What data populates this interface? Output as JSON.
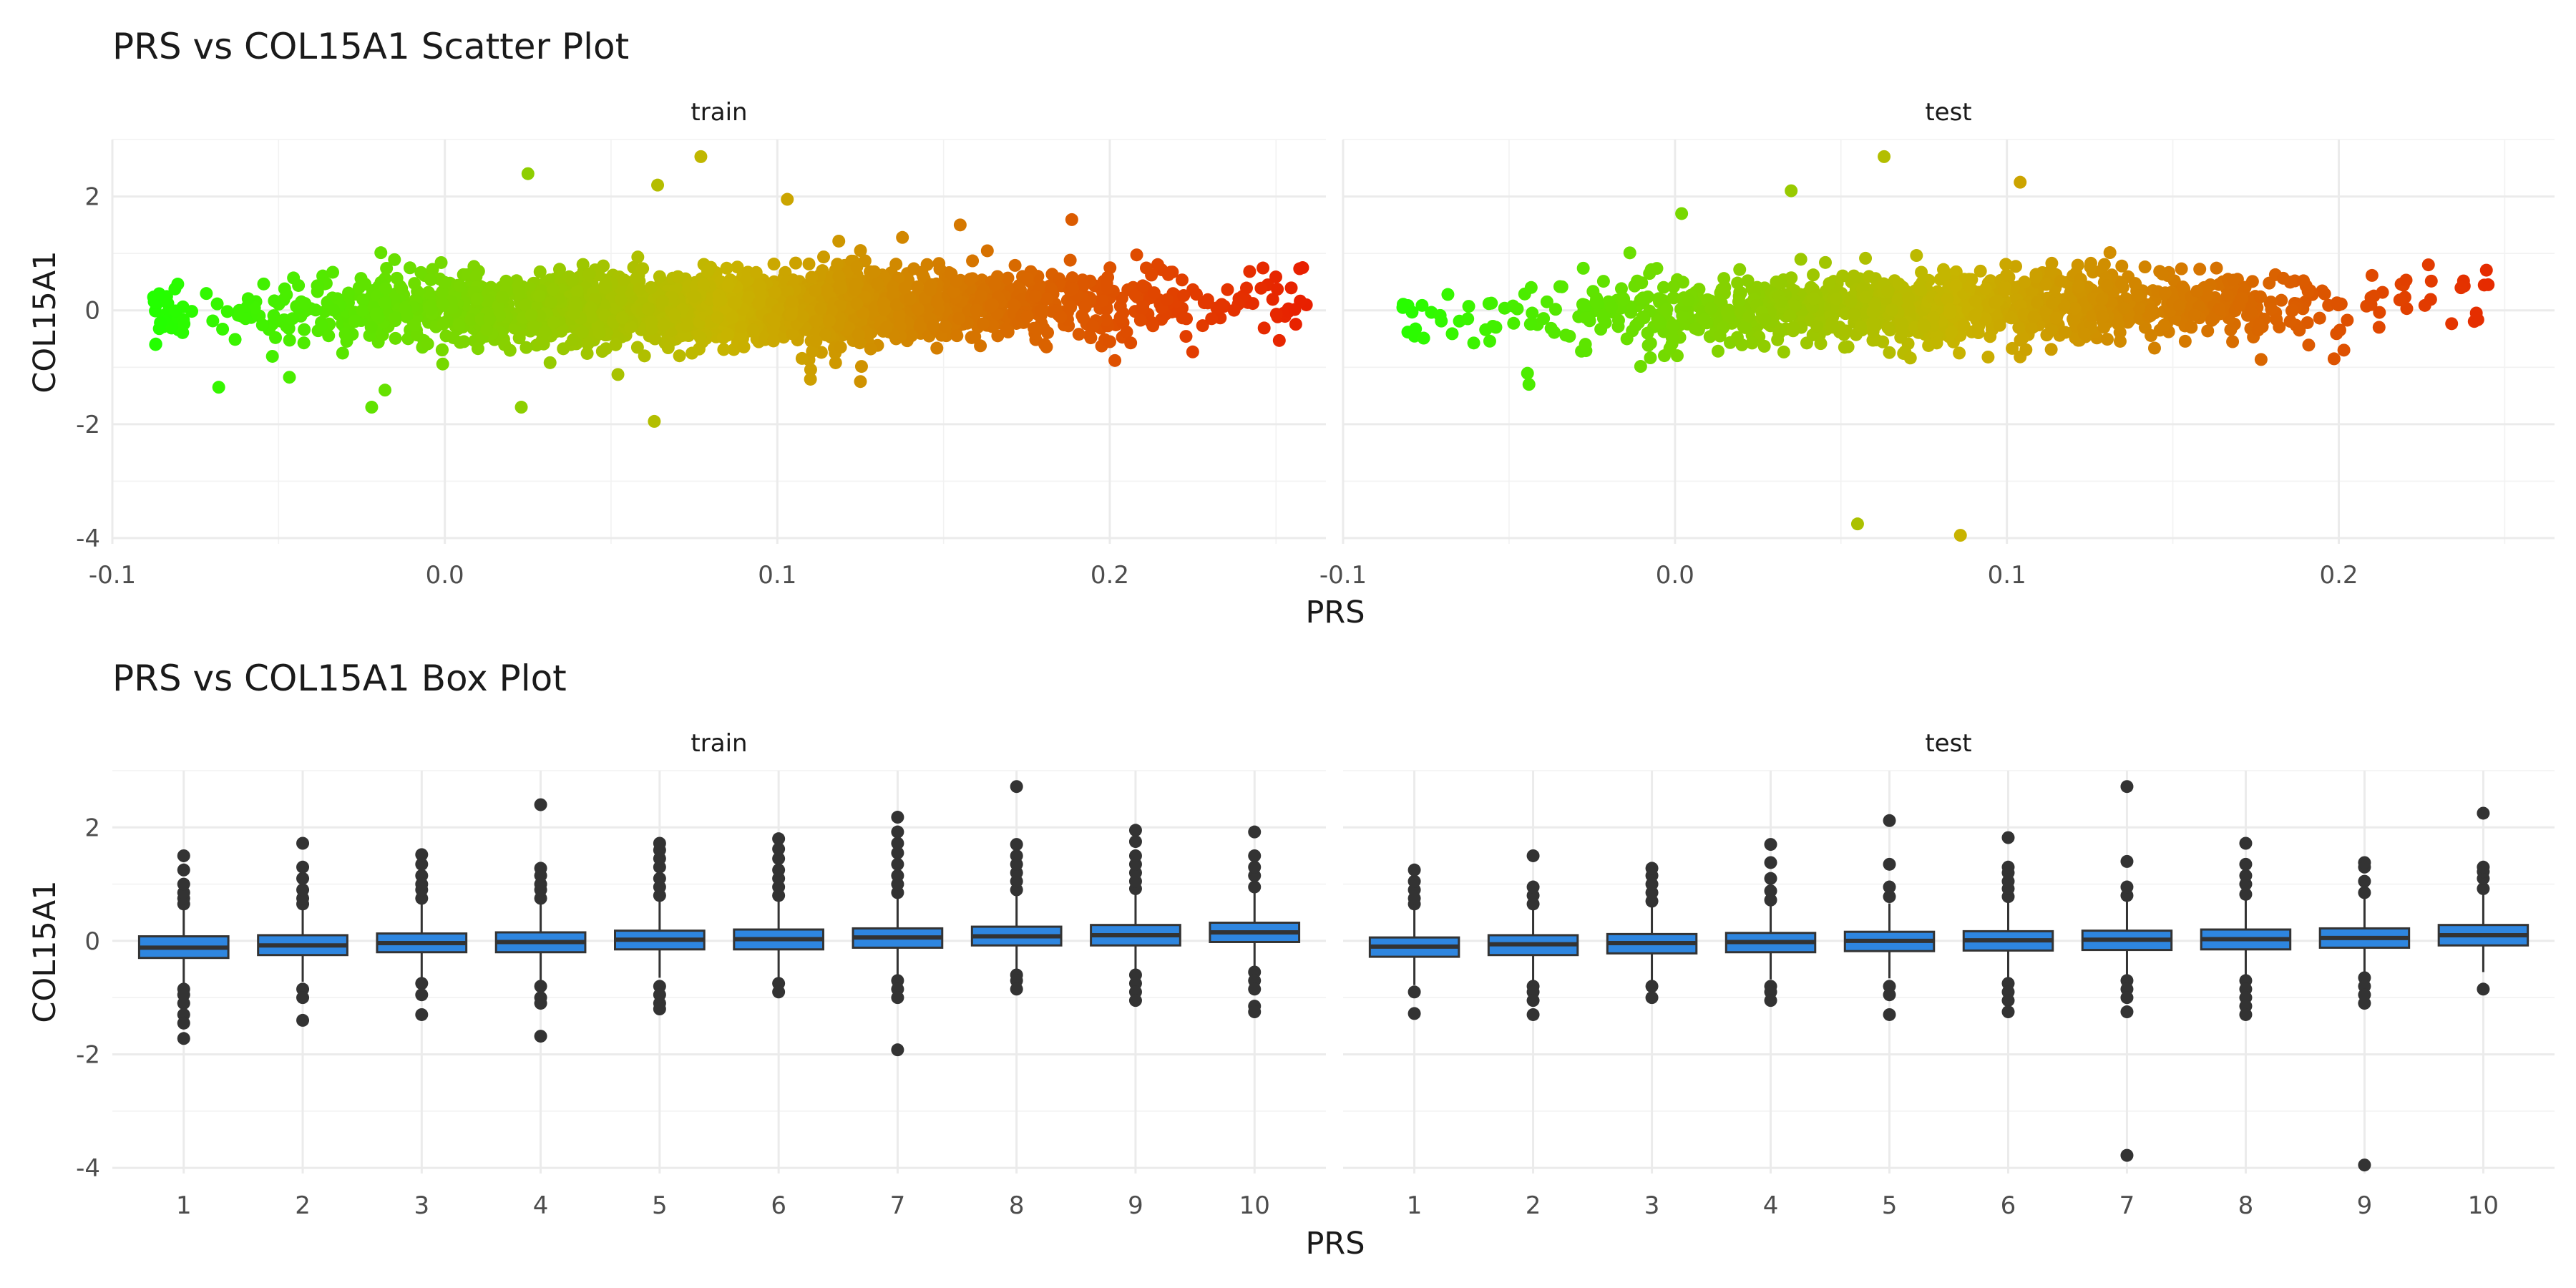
{
  "chart_data": [
    {
      "type": "scatter",
      "title": "PRS vs COL15A1 Scatter Plot",
      "xlabel": "PRS",
      "ylabel": "COL15A1",
      "xlim": [
        -0.1,
        0.265
      ],
      "ylim": [
        -4.1,
        3.0
      ],
      "x_ticks": [
        -0.1,
        0.0,
        0.1,
        0.2
      ],
      "x_tick_labels": [
        "-0.1",
        "0.0",
        "0.1",
        "0.2"
      ],
      "y_ticks": [
        2,
        0,
        -2,
        -4
      ],
      "y_tick_labels": [
        "2",
        "0",
        "-2",
        "-4"
      ],
      "grid": true,
      "color_scale": {
        "low": "#22ff00",
        "mid": "#c8b400",
        "high": "#e82000",
        "by": "PRS"
      },
      "panels": [
        {
          "name": "train",
          "x_range": [
            -0.088,
            0.26
          ],
          "point_count": 2600,
          "highlighted_points": [
            {
              "x": 0.258,
              "y": 0.75
            },
            {
              "x": 0.077,
              "y": 2.7
            },
            {
              "x": 0.025,
              "y": 2.4
            },
            {
              "x": 0.064,
              "y": 2.2
            },
            {
              "x": 0.103,
              "y": 1.95
            },
            {
              "x": 0.155,
              "y": 1.5
            },
            {
              "x": 0.063,
              "y": -1.95
            },
            {
              "x": 0.023,
              "y": -1.7
            },
            {
              "x": -0.022,
              "y": -1.7
            },
            {
              "x": -0.068,
              "y": -1.35
            },
            {
              "x": -0.018,
              "y": -1.4
            },
            {
              "x": 0.125,
              "y": -1.25
            },
            {
              "x": -0.087,
              "y": -0.6
            },
            {
              "x": 0.2,
              "y": -0.55
            }
          ]
        },
        {
          "name": "test",
          "x_range": [
            -0.082,
            0.245
          ],
          "point_count": 1300,
          "highlighted_points": [
            {
              "x": 0.245,
              "y": 0.45
            },
            {
              "x": 0.063,
              "y": 2.7
            },
            {
              "x": 0.104,
              "y": 2.25
            },
            {
              "x": 0.035,
              "y": 2.1
            },
            {
              "x": 0.002,
              "y": 1.7
            },
            {
              "x": 0.055,
              "y": -3.75
            },
            {
              "x": 0.086,
              "y": -3.95
            },
            {
              "x": -0.082,
              "y": 0.05
            },
            {
              "x": -0.044,
              "y": -1.3
            },
            {
              "x": 0.168,
              "y": -0.55
            },
            {
              "x": 0.227,
              "y": 0.8
            }
          ]
        }
      ]
    },
    {
      "type": "box",
      "title": "PRS vs COL15A1 Box Plot",
      "xlabel": "PRS",
      "ylabel": "COL15A1",
      "ylim": [
        -4.1,
        3.0
      ],
      "categories": [
        "1",
        "2",
        "3",
        "4",
        "5",
        "6",
        "7",
        "8",
        "9",
        "10"
      ],
      "y_ticks": [
        2,
        0,
        -2,
        -4
      ],
      "y_tick_labels": [
        "2",
        "0",
        "-2",
        "-4"
      ],
      "grid": true,
      "box_color": "#2e86e0",
      "panels": [
        {
          "name": "train",
          "boxes": [
            {
              "q1": -0.3,
              "median": -0.12,
              "q3": 0.08,
              "low": -0.75,
              "high": 0.55,
              "outliers": [
                0.65,
                0.75,
                0.85,
                1.0,
                1.25,
                1.5,
                -0.85,
                -0.95,
                -1.1,
                -1.3,
                -1.45,
                -1.72
              ]
            },
            {
              "q1": -0.25,
              "median": -0.08,
              "q3": 0.1,
              "low": -0.72,
              "high": 0.58,
              "outliers": [
                0.65,
                0.75,
                0.9,
                1.1,
                1.3,
                1.72,
                -0.85,
                -1.0,
                -1.4
              ]
            },
            {
              "q1": -0.2,
              "median": -0.04,
              "q3": 0.13,
              "low": -0.68,
              "high": 0.65,
              "outliers": [
                0.75,
                0.9,
                1.0,
                1.15,
                1.35,
                1.52,
                -0.75,
                -0.95,
                -1.3
              ]
            },
            {
              "q1": -0.2,
              "median": -0.02,
              "q3": 0.15,
              "low": -0.7,
              "high": 0.65,
              "outliers": [
                0.75,
                0.9,
                1.0,
                1.15,
                1.28,
                2.4,
                -0.8,
                -1.0,
                -1.1,
                -1.68
              ]
            },
            {
              "q1": -0.15,
              "median": 0.02,
              "q3": 0.18,
              "low": -0.65,
              "high": 0.7,
              "outliers": [
                0.8,
                0.95,
                1.1,
                1.3,
                1.45,
                1.6,
                1.72,
                -0.8,
                -0.95,
                -1.1,
                -1.2
              ]
            },
            {
              "q1": -0.15,
              "median": 0.03,
              "q3": 0.2,
              "low": -0.65,
              "high": 0.7,
              "outliers": [
                0.8,
                0.95,
                1.1,
                1.25,
                1.45,
                1.62,
                1.8,
                -0.75,
                -0.9
              ]
            },
            {
              "q1": -0.12,
              "median": 0.06,
              "q3": 0.22,
              "low": -0.62,
              "high": 0.75,
              "outliers": [
                0.85,
                1.0,
                1.15,
                1.35,
                1.55,
                1.72,
                1.92,
                2.18,
                -0.7,
                -0.85,
                -1.0,
                -1.92
              ]
            },
            {
              "q1": -0.08,
              "median": 0.08,
              "q3": 0.25,
              "low": -0.58,
              "high": 0.8,
              "outliers": [
                0.9,
                1.05,
                1.2,
                1.35,
                1.5,
                1.7,
                2.72,
                -0.6,
                -0.7,
                -0.85
              ]
            },
            {
              "q1": -0.08,
              "median": 0.1,
              "q3": 0.28,
              "low": -0.55,
              "high": 0.82,
              "outliers": [
                0.92,
                1.05,
                1.2,
                1.35,
                1.5,
                1.75,
                1.95,
                -0.6,
                -0.75,
                -0.9,
                -1.05
              ]
            },
            {
              "q1": -0.02,
              "median": 0.15,
              "q3": 0.32,
              "low": -0.5,
              "high": 0.85,
              "outliers": [
                0.95,
                1.15,
                1.3,
                1.5,
                1.92,
                -0.55,
                -0.7,
                -0.85,
                -1.15,
                -1.25
              ]
            }
          ]
        },
        {
          "name": "test",
          "boxes": [
            {
              "q1": -0.28,
              "median": -0.1,
              "q3": 0.06,
              "low": -0.78,
              "high": 0.55,
              "outliers": [
                0.65,
                0.75,
                0.9,
                1.05,
                1.25,
                -0.9,
                -1.28
              ]
            },
            {
              "q1": -0.25,
              "median": -0.06,
              "q3": 0.1,
              "low": -0.72,
              "high": 0.58,
              "outliers": [
                0.65,
                0.8,
                0.95,
                1.5,
                -0.8,
                -0.9,
                -1.05,
                -1.3
              ]
            },
            {
              "q1": -0.22,
              "median": -0.04,
              "q3": 0.12,
              "low": -0.7,
              "high": 0.6,
              "outliers": [
                0.7,
                0.85,
                1.0,
                1.15,
                1.28,
                -0.8,
                -1.0
              ]
            },
            {
              "q1": -0.2,
              "median": -0.02,
              "q3": 0.14,
              "low": -0.68,
              "high": 0.62,
              "outliers": [
                0.72,
                0.88,
                1.1,
                1.38,
                1.7,
                -0.8,
                -0.9,
                -1.05
              ]
            },
            {
              "q1": -0.18,
              "median": 0.0,
              "q3": 0.16,
              "low": -0.66,
              "high": 0.66,
              "outliers": [
                0.78,
                0.95,
                1.35,
                2.12,
                -0.8,
                -0.95,
                -1.3
              ]
            },
            {
              "q1": -0.17,
              "median": 0.01,
              "q3": 0.17,
              "low": -0.65,
              "high": 0.68,
              "outliers": [
                0.78,
                0.92,
                1.05,
                1.2,
                1.3,
                1.82,
                -0.75,
                -0.9,
                -1.05,
                -1.25
              ]
            },
            {
              "q1": -0.16,
              "median": 0.02,
              "q3": 0.18,
              "low": -0.64,
              "high": 0.7,
              "outliers": [
                0.8,
                0.95,
                1.4,
                2.72,
                -0.7,
                -0.85,
                -1.0,
                -1.25,
                -3.78
              ]
            },
            {
              "q1": -0.15,
              "median": 0.03,
              "q3": 0.2,
              "low": -0.62,
              "high": 0.72,
              "outliers": [
                0.82,
                1.0,
                1.15,
                1.35,
                1.72,
                -0.7,
                -0.85,
                -1.0,
                -1.15,
                -1.3
              ]
            },
            {
              "q1": -0.12,
              "median": 0.05,
              "q3": 0.22,
              "low": -0.6,
              "high": 0.75,
              "outliers": [
                0.85,
                1.05,
                1.3,
                1.38,
                -0.65,
                -0.8,
                -0.95,
                -1.1,
                -3.95
              ]
            },
            {
              "q1": -0.08,
              "median": 0.1,
              "q3": 0.28,
              "low": -0.55,
              "high": 0.82,
              "outliers": [
                0.92,
                1.1,
                1.22,
                1.3,
                2.25,
                -0.85
              ]
            }
          ]
        }
      ]
    }
  ]
}
